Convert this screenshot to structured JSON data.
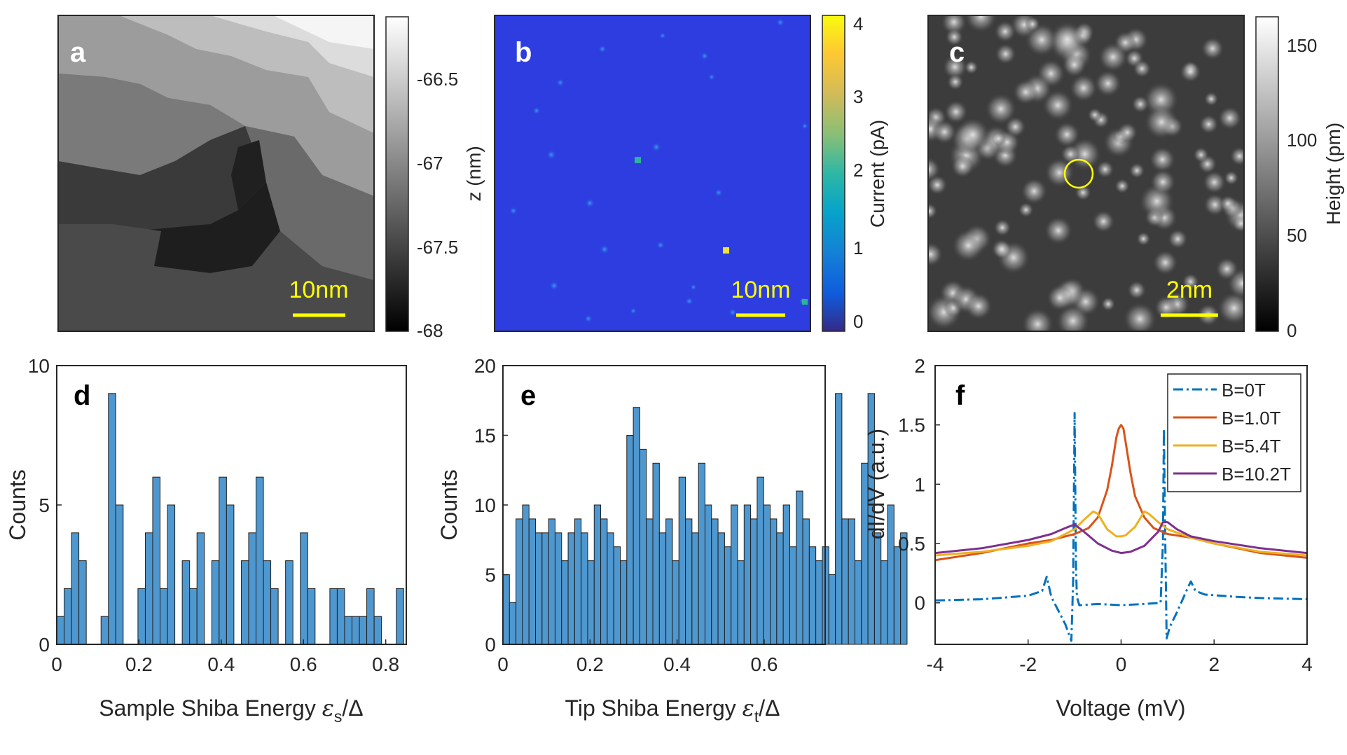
{
  "figure": {
    "panels": {
      "a": {
        "letter": "a",
        "scale_bar": "10nm",
        "colorbar_label": "z (nm)",
        "colorbar_ticks": [
          "-66.5",
          "-67",
          "-67.5",
          "-68"
        ]
      },
      "b": {
        "letter": "b",
        "scale_bar": "10nm",
        "colorbar_label": "Current (pA)",
        "colorbar_ticks": [
          "4",
          "3",
          "2",
          "1",
          "0"
        ]
      },
      "c": {
        "letter": "c",
        "scale_bar": "2nm",
        "colorbar_label": "Height (pm)",
        "colorbar_ticks": [
          "150",
          "100",
          "50",
          "0"
        ]
      },
      "d": {
        "letter": "d"
      },
      "e": {
        "letter": "e"
      },
      "f": {
        "letter": "f"
      }
    }
  },
  "chart_data": [
    {
      "panel": "d",
      "type": "bar",
      "xlabel_prefix": "Sample Shiba Energy ",
      "xlabel_symbol": "ε",
      "xlabel_sub": "s",
      "xlabel_suffix": "/Δ",
      "ylabel": "Counts",
      "xlim": [
        0,
        0.85
      ],
      "ylim": [
        0,
        10
      ],
      "xticks": [
        "0",
        "0.2",
        "0.4",
        "0.6",
        "0.8"
      ],
      "yticks": [
        "0",
        "5",
        "10"
      ],
      "bin_width": 0.01795,
      "values": [
        1,
        2,
        4,
        3,
        0,
        0,
        1,
        9,
        5,
        0,
        0,
        2,
        4,
        6,
        2,
        5,
        0,
        3,
        2,
        4,
        0,
        3,
        6,
        5,
        0,
        3,
        4,
        6,
        3,
        2,
        0,
        3,
        0,
        4,
        2,
        0,
        0,
        2,
        2,
        1,
        1,
        1,
        2,
        1,
        0,
        0,
        2
      ]
    },
    {
      "panel": "e",
      "type": "bar",
      "xlabel_prefix": "Tip Shiba Energy ",
      "xlabel_symbol": "ε",
      "xlabel_sub": "t",
      "xlabel_suffix": "/Δ",
      "ylabel": "Counts",
      "xlim": [
        0,
        0.74
      ],
      "ylim": [
        0,
        20
      ],
      "xticks": [
        "0",
        "0.2",
        "0.4",
        "0.6"
      ],
      "yticks": [
        "0",
        "5",
        "10",
        "15",
        "20"
      ],
      "bin_width": 0.01497,
      "values": [
        5,
        3,
        9,
        10,
        9,
        8,
        8,
        9,
        8,
        6,
        8,
        9,
        8,
        6,
        10,
        9,
        8,
        7,
        6,
        15,
        17,
        14,
        9,
        13,
        8,
        9,
        6,
        12,
        9,
        8,
        13,
        10,
        9,
        8,
        7,
        10,
        6,
        10,
        9,
        12,
        10,
        9,
        8,
        10,
        7,
        11,
        9,
        7,
        6,
        7,
        5,
        18,
        9,
        9,
        6,
        13,
        18,
        8,
        6,
        10,
        7,
        8
      ]
    },
    {
      "panel": "f",
      "type": "line",
      "xlabel": "Voltage (mV)",
      "ylabel": "dI/dV (a.u.)",
      "xlim": [
        -4,
        4
      ],
      "ylim": [
        -0.35,
        2
      ],
      "xticks": [
        "-4",
        "-2",
        "0",
        "2",
        "4"
      ],
      "yticks": [
        "0",
        "0.5",
        "1",
        "1.5",
        "2"
      ],
      "legend_position": "top-right",
      "series": [
        {
          "name": "B=0T",
          "color": "#0072BD",
          "dash": "dashdot",
          "x": [
            -4,
            -3,
            -2,
            -1.7,
            -1.6,
            -1.5,
            -1.2,
            -1.07,
            -1.03,
            -1.0,
            -0.97,
            -0.95,
            -0.9,
            -0.5,
            0,
            0.5,
            0.85,
            0.9,
            0.92,
            0.95,
            0.98,
            1.05,
            1.2,
            1.45,
            1.5,
            1.6,
            1.8,
            2.5,
            3,
            4
          ],
          "y": [
            0.02,
            0.03,
            0.06,
            0.1,
            0.22,
            0.05,
            -0.18,
            -0.32,
            0.2,
            1.6,
            0.3,
            0.05,
            -0.02,
            -0.01,
            -0.02,
            -0.01,
            0.0,
            0.5,
            1.47,
            0.5,
            -0.3,
            -0.2,
            -0.08,
            0.14,
            0.18,
            0.1,
            0.07,
            0.05,
            0.04,
            0.03
          ]
        },
        {
          "name": "B=1.0T",
          "color": "#D95319",
          "dash": "solid",
          "x": [
            -4,
            -3,
            -2,
            -1.5,
            -1,
            -0.7,
            -0.5,
            -0.3,
            -0.2,
            -0.1,
            -0.05,
            0,
            0.05,
            0.1,
            0.2,
            0.3,
            0.5,
            0.7,
            1,
            1.5,
            2,
            3,
            4
          ],
          "y": [
            0.36,
            0.42,
            0.5,
            0.53,
            0.58,
            0.63,
            0.72,
            0.95,
            1.15,
            1.4,
            1.47,
            1.5,
            1.47,
            1.35,
            1.1,
            0.9,
            0.72,
            0.63,
            0.58,
            0.55,
            0.5,
            0.42,
            0.38
          ]
        },
        {
          "name": "B=5.4T",
          "color": "#EDB120",
          "dash": "solid",
          "x": [
            -4,
            -3,
            -2,
            -1.5,
            -1,
            -0.8,
            -0.6,
            -0.5,
            -0.3,
            -0.1,
            0,
            0.1,
            0.3,
            0.5,
            0.6,
            0.8,
            1,
            1.5,
            2,
            3,
            4
          ],
          "y": [
            0.4,
            0.43,
            0.48,
            0.52,
            0.62,
            0.7,
            0.77,
            0.75,
            0.62,
            0.56,
            0.56,
            0.57,
            0.64,
            0.77,
            0.75,
            0.68,
            0.62,
            0.55,
            0.5,
            0.43,
            0.4
          ]
        },
        {
          "name": "B=10.2T",
          "color": "#7E2F8E",
          "dash": "solid",
          "x": [
            -4,
            -3,
            -2,
            -1.5,
            -1.2,
            -1,
            -0.8,
            -0.5,
            -0.2,
            0,
            0.2,
            0.5,
            0.8,
            0.9,
            1,
            1.2,
            1.5,
            2,
            3,
            4
          ],
          "y": [
            0.42,
            0.46,
            0.53,
            0.58,
            0.63,
            0.66,
            0.6,
            0.5,
            0.44,
            0.42,
            0.43,
            0.48,
            0.6,
            0.68,
            0.68,
            0.62,
            0.56,
            0.52,
            0.46,
            0.42
          ]
        }
      ]
    }
  ]
}
